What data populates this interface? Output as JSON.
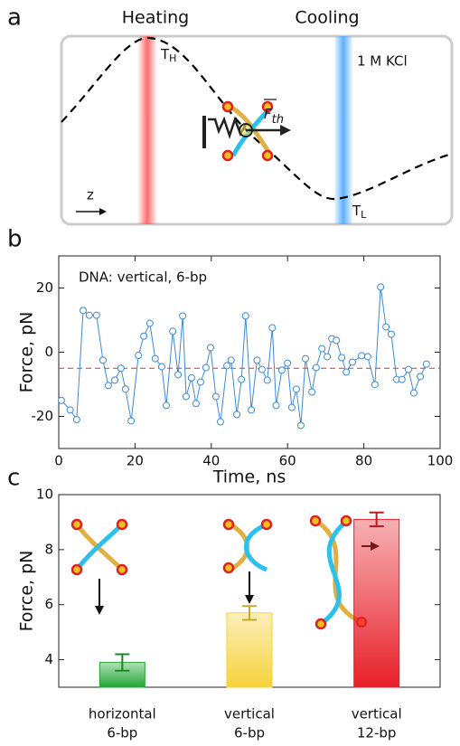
{
  "diagram": {
    "panel_label": "a",
    "heating": "Heating",
    "cooling": "Cooling",
    "hot": {
      "main": "T",
      "sub": "H"
    },
    "cold": {
      "main": "T",
      "sub": "L"
    },
    "solution": "1 M KCl",
    "force": {
      "main": "F",
      "sub": "th"
    },
    "axis": "z"
  },
  "chart_data": [
    {
      "type": "line",
      "panel_label": "b",
      "annotation": "DNA: vertical, 6-bp",
      "xlabel": "Time, ns",
      "ylabel": "Force, pN",
      "color": "#3a8bd6",
      "reference_line": -5,
      "reference_color": "#e03030",
      "xlim": [
        0,
        100
      ],
      "xticks": [
        0,
        20,
        40,
        60,
        80,
        100
      ],
      "ylim": [
        -30,
        30
      ],
      "yticks": [
        -20,
        0,
        20
      ],
      "x": [
        0.7,
        3,
        4.7,
        6.4,
        8,
        9.9,
        11.6,
        13,
        14.7,
        16.3,
        17.5,
        19,
        20.9,
        22.3,
        23.9,
        25.3,
        27,
        28.2,
        29.9,
        31.3,
        32.5,
        33.4,
        34.8,
        36,
        37.2,
        38.6,
        39.8,
        41.2,
        42.4,
        44.1,
        45.2,
        46.7,
        47.9,
        49,
        50.5,
        52,
        53.3,
        54.7,
        56,
        57,
        58.5,
        60,
        61.1,
        62.3,
        63.5,
        64.7,
        66.4,
        67.5,
        69,
        70.4,
        71.6,
        72.8,
        74.2,
        75.4,
        77,
        79.4,
        81,
        82.9,
        84.4,
        85.8,
        87.2,
        88.6,
        90,
        91.7,
        93.1,
        94.8,
        96.4
      ],
      "values": [
        -15,
        -18,
        -21,
        13,
        11.5,
        11.5,
        -2.5,
        -10.4,
        -8.7,
        -5,
        -11.5,
        -21.4,
        -1,
        5,
        9,
        -2,
        -4.5,
        -16.6,
        6.5,
        -7,
        11.3,
        -13.8,
        -8,
        -16,
        -9.3,
        -4.8,
        1.4,
        -13.8,
        -21.7,
        -4.2,
        -2.5,
        -19.4,
        -8.5,
        11.3,
        -18,
        -2.5,
        -5.4,
        -8.7,
        7.6,
        -16.6,
        -5.6,
        -3.4,
        -17.2,
        -11.5,
        -22.8,
        -2,
        -12.4,
        -4.8,
        1.1,
        -1.4,
        4.2,
        3.7,
        -1.7,
        -6.2,
        -3.1,
        -1.1,
        -1.4,
        -10.1,
        20.3,
        7.9,
        5.6,
        -8.5,
        -8.5,
        -5.4,
        -12.7,
        -7.6,
        -3.7
      ]
    },
    {
      "type": "bar",
      "panel_label": "c",
      "ylabel": "Force, pN",
      "ylim": [
        3,
        10
      ],
      "yticks": [
        4,
        6,
        8,
        10
      ],
      "categories": [
        [
          "horizontal",
          "6-bp"
        ],
        [
          "vertical",
          "6-bp"
        ],
        [
          "vertical",
          "12-bp"
        ]
      ],
      "values": [
        3.9,
        5.7,
        9.1
      ],
      "errors": [
        0.3,
        0.25,
        0.25
      ],
      "colors": [
        "#21a632",
        "#f6d23a",
        "#e8202a"
      ]
    }
  ]
}
